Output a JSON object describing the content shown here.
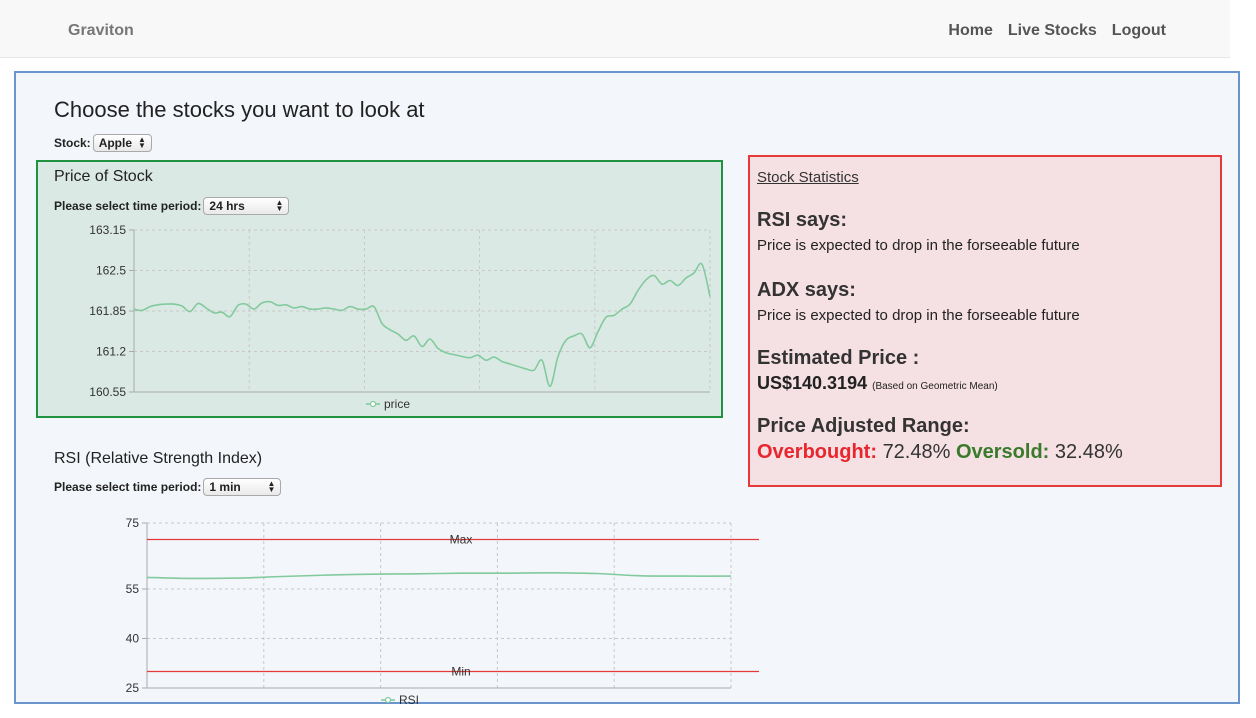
{
  "navbar": {
    "brand": "Graviton",
    "links": [
      "Home",
      "Live Stocks",
      "Logout"
    ]
  },
  "page": {
    "title": "Choose the stocks you want to look at",
    "stock_label": "Stock:",
    "stock_selected": "Apple"
  },
  "price_panel": {
    "title": "Price of Stock",
    "period_label": "Please select time period:",
    "period_selected": "24 hrs"
  },
  "rsi_panel": {
    "title": "RSI (Relative Strength Index)",
    "period_label": "Please select time period:",
    "period_selected": "1 min"
  },
  "stats": {
    "title": "Stock Statistics",
    "rsi_heading": "RSI says:",
    "rsi_text": "Price is expected to drop in the forseeable future",
    "adx_heading": "ADX says:",
    "adx_text": "Price is expected to drop in the forseeable future",
    "est_heading": "Estimated Price :",
    "est_value": "US$140.3194",
    "est_note": "(Based on Geometric Mean)",
    "range_heading": "Price Adjusted Range:",
    "overbought_label": "Overbought:",
    "overbought_value": "72.48%",
    "oversold_label": "Oversold:",
    "oversold_value": "32.48%"
  },
  "colors": {
    "series": "#82ca9d",
    "reference_line": "#e43a3a",
    "frame_border": "#6a95cd",
    "price_border": "#21923f",
    "stats_border": "#e43a3a"
  },
  "chart_data": [
    {
      "type": "line",
      "series": [
        {
          "name": "price",
          "values": [
            161.88,
            161.86,
            161.92,
            161.95,
            161.96,
            161.96,
            161.93,
            161.84,
            161.97,
            161.9,
            161.82,
            161.83,
            161.76,
            161.94,
            161.96,
            161.88,
            161.98,
            162.0,
            161.94,
            161.95,
            161.9,
            161.92,
            161.88,
            161.88,
            161.9,
            161.88,
            161.86,
            161.92,
            161.88,
            161.88,
            161.92,
            161.65,
            161.55,
            161.48,
            161.38,
            161.45,
            161.28,
            161.4,
            161.25,
            161.18,
            161.15,
            161.12,
            161.1,
            161.14,
            161.06,
            161.11,
            161.04,
            161.0,
            160.96,
            160.92,
            160.9,
            161.06,
            160.64,
            161.12,
            161.38,
            161.45,
            161.48,
            161.26,
            161.52,
            161.75,
            161.78,
            161.88,
            161.96,
            162.18,
            162.35,
            162.42,
            162.28,
            162.34,
            162.26,
            162.38,
            162.46,
            162.6,
            162.08
          ]
        }
      ],
      "ylim": [
        160.55,
        163.15
      ],
      "y_ticks": [
        "163.15",
        "162.5",
        "161.85",
        "161.2",
        "160.55"
      ],
      "grid": true,
      "legend": "bottom"
    },
    {
      "type": "line",
      "series": [
        {
          "name": "RSI",
          "values": [
            58.5,
            58.2,
            58.3,
            58.8,
            59.2,
            59.5,
            59.6,
            59.8,
            59.8,
            59.9,
            59.7,
            59.0,
            58.9,
            58.9
          ]
        }
      ],
      "ylim": [
        25,
        75
      ],
      "y_ticks": [
        "75",
        "55",
        "40",
        "25"
      ],
      "reference_lines": [
        {
          "label": "Max",
          "value": 70
        },
        {
          "label": "Min",
          "value": 30
        }
      ],
      "grid": true,
      "legend": "bottom"
    }
  ]
}
